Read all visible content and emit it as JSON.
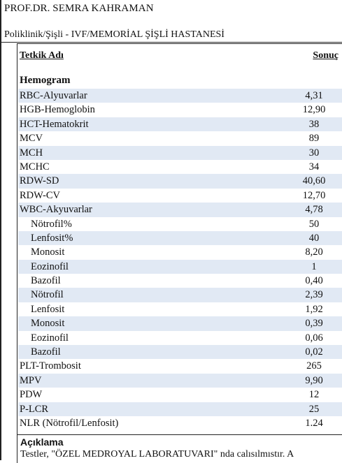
{
  "header": {
    "doctor": "PROF.DR. SEMRA KAHRAMAN",
    "clinic": "Poliklinik/Şişli - IVF/MEMORİAL ŞİŞLİ HASTANESİ"
  },
  "table": {
    "col_name": "Tetkik Adı",
    "col_result": "Sonuç",
    "section": "Hemogram",
    "rows": [
      {
        "name": "RBC-Alyuvarlar",
        "value": "4,31",
        "sub": false,
        "shade": true
      },
      {
        "name": "HGB-Hemoglobin",
        "value": "12,90",
        "sub": false,
        "shade": false
      },
      {
        "name": "HCT-Hematokrit",
        "value": "38",
        "sub": false,
        "shade": true
      },
      {
        "name": "MCV",
        "value": "89",
        "sub": false,
        "shade": false
      },
      {
        "name": "MCH",
        "value": "30",
        "sub": false,
        "shade": true
      },
      {
        "name": "MCHC",
        "value": "34",
        "sub": false,
        "shade": false
      },
      {
        "name": "RDW-SD",
        "value": "40,60",
        "sub": false,
        "shade": true
      },
      {
        "name": "RDW-CV",
        "value": "12,70",
        "sub": false,
        "shade": false
      },
      {
        "name": "WBC-Akyuvarlar",
        "value": "4,78",
        "sub": false,
        "shade": true
      },
      {
        "name": "Nötrofil%",
        "value": "50",
        "sub": true,
        "shade": false
      },
      {
        "name": "Lenfosit%",
        "value": "40",
        "sub": true,
        "shade": true
      },
      {
        "name": "Monosit",
        "value": "8,20",
        "sub": true,
        "shade": false
      },
      {
        "name": "Eozinofil",
        "value": "1",
        "sub": true,
        "shade": true
      },
      {
        "name": "Bazofil",
        "value": "0,40",
        "sub": true,
        "shade": false
      },
      {
        "name": "Nötrofil",
        "value": "2,39",
        "sub": true,
        "shade": true
      },
      {
        "name": "Lenfosit",
        "value": "1,92",
        "sub": true,
        "shade": false
      },
      {
        "name": "Monosit",
        "value": "0,39",
        "sub": true,
        "shade": true
      },
      {
        "name": "Eozinofil",
        "value": "0,06",
        "sub": true,
        "shade": false
      },
      {
        "name": "Bazofil",
        "value": "0,02",
        "sub": true,
        "shade": true
      },
      {
        "name": "PLT-Trombosit",
        "value": "265",
        "sub": false,
        "shade": false
      },
      {
        "name": "MPV",
        "value": "9,90",
        "sub": false,
        "shade": true
      },
      {
        "name": "PDW",
        "value": "12",
        "sub": false,
        "shade": false
      },
      {
        "name": "P-LCR",
        "value": "25",
        "sub": false,
        "shade": true
      },
      {
        "name": "NLR (Nötrofil/Lenfosit)",
        "value": "1.24",
        "sub": false,
        "shade": false
      }
    ]
  },
  "footer": {
    "title": "Açıklama",
    "text": "Testler, \"ÖZEL MEDROYAL LABORATUVARI\" nda calısılmıstır. A"
  },
  "colors": {
    "row_shade": "#e1e9f4",
    "rule": "#222222"
  }
}
